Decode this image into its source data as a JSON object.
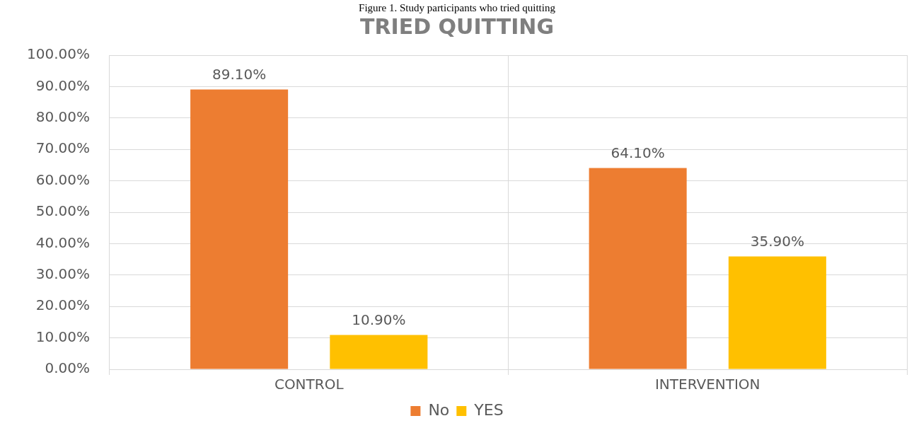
{
  "chart_data": {
    "type": "bar",
    "title": "TRIED QUITTING",
    "annotations": [
      "Figure 1. Study participants who tried quitting"
    ],
    "categories": [
      "CONTROL",
      "INTERVENTION"
    ],
    "series": [
      {
        "name": "No",
        "color": "#ed7d31",
        "values": [
          89.1,
          64.1
        ],
        "value_labels": [
          "89.10%",
          "64.10%"
        ]
      },
      {
        "name": "YES",
        "color": "#ffc000",
        "values": [
          10.9,
          35.9
        ],
        "value_labels": [
          "10.90%",
          "35.90%"
        ]
      }
    ],
    "ylim": [
      0,
      100
    ],
    "yticks": [
      {
        "value": 0,
        "label": "0.00%"
      },
      {
        "value": 10,
        "label": "10.00%"
      },
      {
        "value": 20,
        "label": "20.00%"
      },
      {
        "value": 30,
        "label": "30.00%"
      },
      {
        "value": 40,
        "label": "40.00%"
      },
      {
        "value": 50,
        "label": "50.00%"
      },
      {
        "value": 60,
        "label": "60.00%"
      },
      {
        "value": 70,
        "label": "70.00%"
      },
      {
        "value": 80,
        "label": "80.00%"
      },
      {
        "value": 90,
        "label": "90.00%"
      },
      {
        "value": 100,
        "label": "100.00%"
      }
    ],
    "grid": true,
    "legend": "bottom"
  }
}
